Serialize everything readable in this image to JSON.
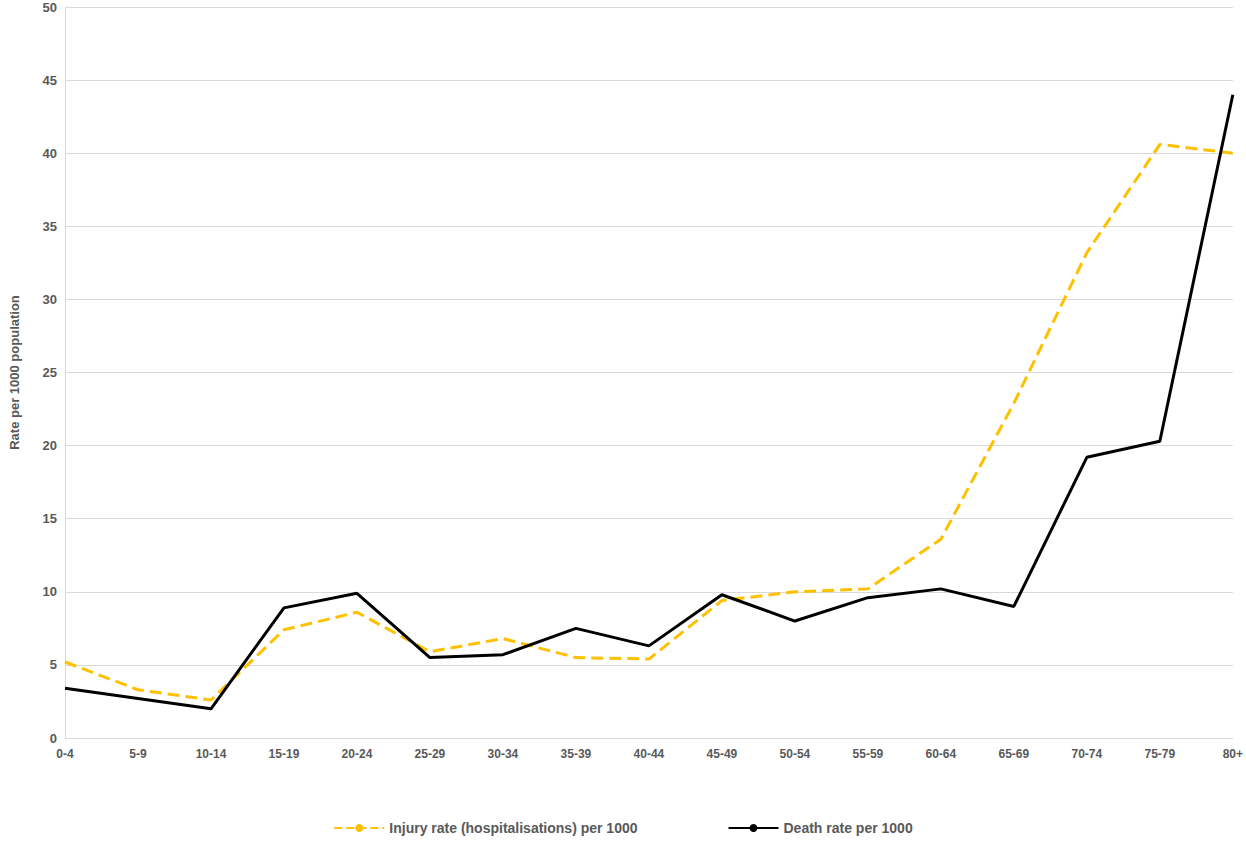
{
  "chart_data": {
    "type": "line",
    "y_label": "Rate per 1000 population",
    "categories": [
      "0-4",
      "5-9",
      "10-14",
      "15-19",
      "20-24",
      "25-29",
      "30-34",
      "35-39",
      "40-44",
      "45-49",
      "50-54",
      "55-59",
      "60-64",
      "65-69",
      "70-74",
      "75-79",
      "80+"
    ],
    "series": [
      {
        "name": "Injury rate (hospitalisations) per 1000",
        "color": "#FFC000",
        "line_style": "dashed",
        "values": [
          5.2,
          3.3,
          2.6,
          7.4,
          8.6,
          5.9,
          6.8,
          5.5,
          5.4,
          9.4,
          10.0,
          10.2,
          13.6,
          22.9,
          33.2,
          40.6,
          40.0
        ]
      },
      {
        "name": "Death rate per 1000",
        "color": "#000000",
        "line_style": "solid",
        "values": [
          3.4,
          2.7,
          2.0,
          8.9,
          9.9,
          5.5,
          5.7,
          7.5,
          6.3,
          9.8,
          8.0,
          9.6,
          10.2,
          9.0,
          19.2,
          20.3,
          44.0
        ]
      }
    ],
    "ylim": [
      0,
      50
    ],
    "yticks": [
      0,
      5,
      10,
      15,
      20,
      25,
      30,
      35,
      40,
      45,
      50
    ],
    "grid": true,
    "legend": "bottom"
  }
}
